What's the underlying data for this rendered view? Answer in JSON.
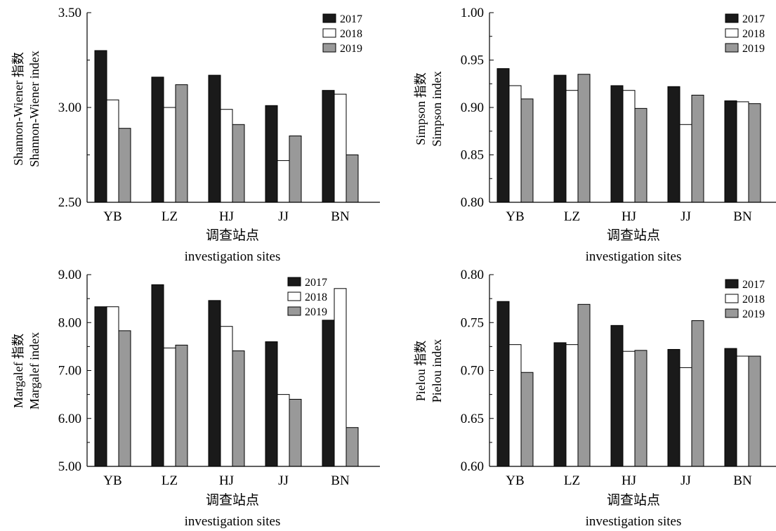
{
  "colors": {
    "2017": "#1a1a1a",
    "2018": "#ffffff",
    "2019": "#999999"
  },
  "chart_data": [
    {
      "type": "bar",
      "categories": [
        "YB",
        "LZ",
        "HJ",
        "JJ",
        "BN"
      ],
      "series": [
        {
          "name": "2017",
          "values": [
            3.3,
            3.16,
            3.17,
            3.01,
            3.09
          ]
        },
        {
          "name": "2018",
          "values": [
            3.04,
            3.0,
            2.99,
            2.72,
            3.07
          ]
        },
        {
          "name": "2019",
          "values": [
            2.89,
            3.12,
            2.91,
            2.85,
            2.75
          ]
        }
      ],
      "ylim": [
        2.5,
        3.5
      ],
      "yticks": [
        "2.50",
        "3.00",
        "3.50"
      ],
      "ylabel_lines": [
        "Shannon-Wiener 指数",
        "Shannon-Wiener index"
      ],
      "xlabel_lines": [
        "调查站点",
        "investigation sites"
      ],
      "legend": "top-right"
    },
    {
      "type": "bar",
      "categories": [
        "YB",
        "LZ",
        "HJ",
        "JJ",
        "BN"
      ],
      "series": [
        {
          "name": "2017",
          "values": [
            0.941,
            0.934,
            0.923,
            0.922,
            0.907
          ]
        },
        {
          "name": "2018",
          "values": [
            0.923,
            0.918,
            0.918,
            0.882,
            0.906
          ]
        },
        {
          "name": "2019",
          "values": [
            0.909,
            0.935,
            0.899,
            0.913,
            0.904
          ]
        }
      ],
      "ylim": [
        0.8,
        1.0
      ],
      "yticks": [
        "0.80",
        "0.85",
        "0.90",
        "0.95",
        "1.00"
      ],
      "ylabel_lines": [
        "Simpson 指数",
        "Simpson index"
      ],
      "xlabel_lines": [
        "调查站点",
        "investigation sites"
      ],
      "legend": "top-right"
    },
    {
      "type": "bar",
      "categories": [
        "YB",
        "LZ",
        "HJ",
        "JJ",
        "BN"
      ],
      "series": [
        {
          "name": "2017",
          "values": [
            8.33,
            8.79,
            8.46,
            7.6,
            8.05
          ]
        },
        {
          "name": "2018",
          "values": [
            8.33,
            7.47,
            7.92,
            6.5,
            8.71
          ]
        },
        {
          "name": "2019",
          "values": [
            7.83,
            7.53,
            7.41,
            6.4,
            5.81
          ]
        }
      ],
      "ylim": [
        5.0,
        9.0
      ],
      "yticks": [
        "5.00",
        "6.00",
        "7.00",
        "8.00",
        "9.00"
      ],
      "ylabel_lines": [
        "Margalef 指数",
        "Margalef index"
      ],
      "xlabel_lines": [
        "调查站点",
        "investigation sites"
      ],
      "legend": "top-right"
    },
    {
      "type": "bar",
      "categories": [
        "YB",
        "LZ",
        "HJ",
        "JJ",
        "BN"
      ],
      "series": [
        {
          "name": "2017",
          "values": [
            0.772,
            0.729,
            0.747,
            0.722,
            0.723
          ]
        },
        {
          "name": "2018",
          "values": [
            0.727,
            0.727,
            0.72,
            0.703,
            0.715
          ]
        },
        {
          "name": "2019",
          "values": [
            0.698,
            0.769,
            0.721,
            0.752,
            0.715
          ]
        }
      ],
      "ylim": [
        0.6,
        0.8
      ],
      "yticks": [
        "0.60",
        "0.65",
        "0.70",
        "0.75",
        "0.80"
      ],
      "ylabel_lines": [
        "Pielou 指数",
        "Pielou index"
      ],
      "xlabel_lines": [
        "调查站点",
        "investigation sites"
      ],
      "legend": "top-right"
    }
  ]
}
